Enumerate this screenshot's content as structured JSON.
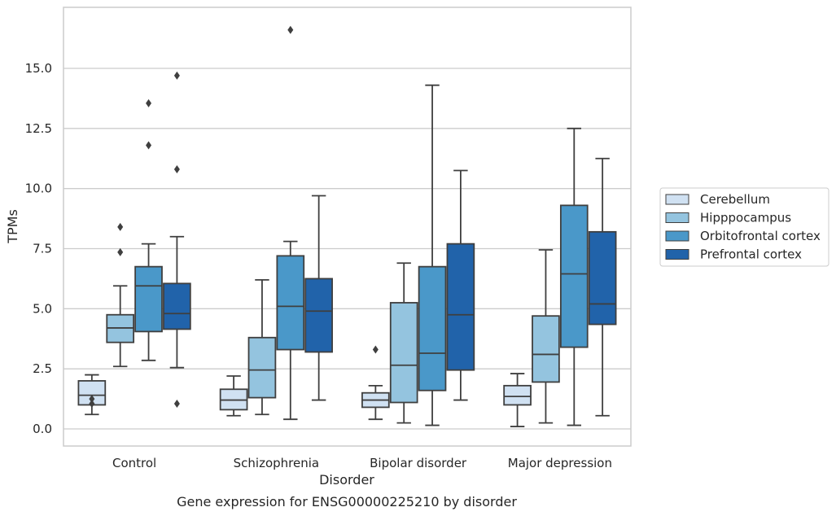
{
  "chart_data": {
    "type": "box",
    "title": "",
    "caption": "Gene expression for ENSG00000225210 by disorder",
    "xlabel": "Disorder",
    "ylabel": "TPMs",
    "ylim": [
      -0.7,
      17.5
    ],
    "yticks": [
      0.0,
      2.5,
      5.0,
      7.5,
      10.0,
      12.5,
      15.0
    ],
    "ytick_labels": [
      "0.0",
      "2.5",
      "5.0",
      "7.5",
      "10.0",
      "12.5",
      "15.0"
    ],
    "grid": "horizontal",
    "legend_position": "right",
    "categories": [
      "Control",
      "Schizophrenia",
      "Bipolar disorder",
      "Major depression"
    ],
    "series": [
      {
        "name": "Cerebellum",
        "color": "#d0e1f2",
        "boxes": [
          {
            "whisker_low": 0.6,
            "q1": 1.0,
            "median": 1.4,
            "q3": 2.0,
            "whisker_high": 2.25,
            "outliers": [
              1.05,
              1.25
            ]
          },
          {
            "whisker_low": 0.55,
            "q1": 0.8,
            "median": 1.2,
            "q3": 1.65,
            "whisker_high": 2.2,
            "outliers": []
          },
          {
            "whisker_low": 0.4,
            "q1": 0.9,
            "median": 1.2,
            "q3": 1.5,
            "whisker_high": 1.8,
            "outliers": [
              3.3
            ]
          },
          {
            "whisker_low": 0.1,
            "q1": 1.0,
            "median": 1.35,
            "q3": 1.8,
            "whisker_high": 2.3,
            "outliers": []
          }
        ]
      },
      {
        "name": "Hipppocampus",
        "color": "#94c4df",
        "boxes": [
          {
            "whisker_low": 2.6,
            "q1": 3.6,
            "median": 4.2,
            "q3": 4.75,
            "whisker_high": 5.95,
            "outliers": [
              7.35,
              8.4
            ]
          },
          {
            "whisker_low": 0.6,
            "q1": 1.3,
            "median": 2.45,
            "q3": 3.8,
            "whisker_high": 6.2,
            "outliers": []
          },
          {
            "whisker_low": 0.25,
            "q1": 1.1,
            "median": 2.65,
            "q3": 5.25,
            "whisker_high": 6.9,
            "outliers": []
          },
          {
            "whisker_low": 0.25,
            "q1": 1.95,
            "median": 3.1,
            "q3": 4.7,
            "whisker_high": 7.45,
            "outliers": []
          }
        ]
      },
      {
        "name": "Orbitofrontal cortex",
        "color": "#4a98c9",
        "boxes": [
          {
            "whisker_low": 2.85,
            "q1": 4.05,
            "median": 5.95,
            "q3": 6.75,
            "whisker_high": 7.7,
            "outliers": [
              11.8,
              13.55
            ]
          },
          {
            "whisker_low": 0.4,
            "q1": 3.3,
            "median": 5.1,
            "q3": 7.2,
            "whisker_high": 7.8,
            "outliers": [
              16.6
            ]
          },
          {
            "whisker_low": 0.15,
            "q1": 1.6,
            "median": 3.15,
            "q3": 6.75,
            "whisker_high": 14.3,
            "outliers": []
          },
          {
            "whisker_low": 0.15,
            "q1": 3.4,
            "median": 6.45,
            "q3": 9.3,
            "whisker_high": 12.5,
            "outliers": []
          }
        ]
      },
      {
        "name": "Prefrontal cortex",
        "color": "#2163aa",
        "boxes": [
          {
            "whisker_low": 2.55,
            "q1": 4.15,
            "median": 4.8,
            "q3": 6.05,
            "whisker_high": 8.0,
            "outliers": [
              1.05,
              10.8,
              14.7
            ]
          },
          {
            "whisker_low": 1.2,
            "q1": 3.2,
            "median": 4.9,
            "q3": 6.25,
            "whisker_high": 9.7,
            "outliers": []
          },
          {
            "whisker_low": 1.2,
            "q1": 2.45,
            "median": 4.75,
            "q3": 7.7,
            "whisker_high": 10.75,
            "outliers": []
          },
          {
            "whisker_low": 0.55,
            "q1": 4.35,
            "median": 5.2,
            "q3": 8.2,
            "whisker_high": 11.25,
            "outliers": []
          }
        ]
      }
    ]
  }
}
